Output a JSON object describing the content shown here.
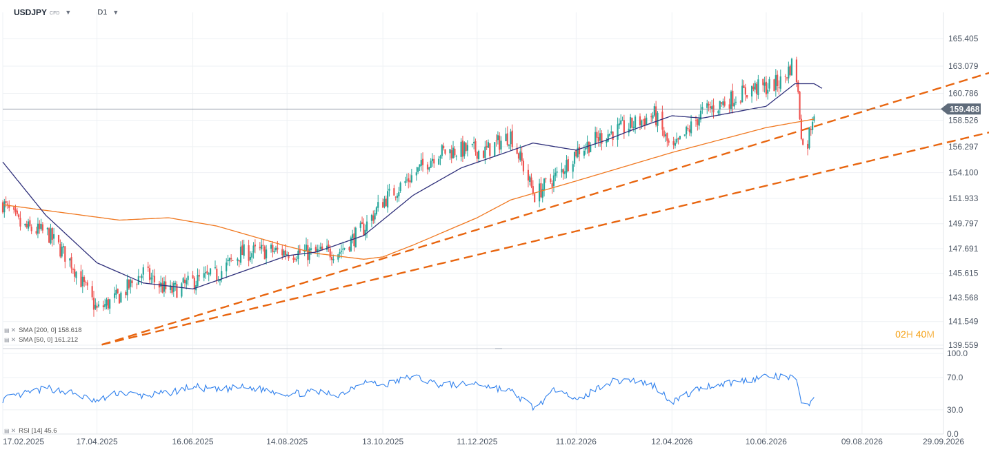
{
  "header": {
    "symbol": "USDJPY",
    "instrument_type": "CFD",
    "timeframe": "D1"
  },
  "indicators": {
    "sma200": {
      "label": "SMA [200, 0] 158.618",
      "color": "#f07820"
    },
    "sma50": {
      "label": "SMA [50, 0] 161.212",
      "color": "#2e2f7a"
    },
    "rsi": {
      "label": "RSI [14] 45.6",
      "color": "#2f80ed"
    }
  },
  "countdown": {
    "hours": "02",
    "h_unit": "H",
    "minutes": "40",
    "m_unit": "M"
  },
  "current_price": {
    "label": "159.468",
    "value": 159.468,
    "color": "#5f6b7a"
  },
  "colors": {
    "up": "#26a69a",
    "down": "#ef5350",
    "trendline": "#e8650f",
    "grid": "#eef1f4"
  },
  "chart_data": [
    {
      "type": "candlestick",
      "title": "USDJPY D1",
      "ylim": [
        139.0,
        166.0
      ],
      "y_ticks": [
        165.405,
        163.079,
        160.786,
        158.526,
        156.297,
        154.1,
        151.933,
        149.797,
        147.691,
        145.615,
        143.568,
        141.549,
        139.559
      ],
      "x_labels": [
        "17.02.2025",
        "17.04.2025",
        "16.06.2025",
        "14.08.2025",
        "13.10.2025",
        "11.12.2025",
        "11.02.2026",
        "12.04.2026",
        "10.06.2026",
        "09.08.2026",
        "29.09.2026"
      ],
      "close_anchors": {
        "x": [
          "17.02.2025",
          "01.03.2025",
          "17.03.2025",
          "01.04.2025",
          "17.04.2025",
          "01.05.2025",
          "16.05.2025",
          "01.06.2025",
          "16.06.2025",
          "01.07.2025",
          "16.07.2025",
          "01.08.2025",
          "14.08.2025",
          "01.09.2025",
          "16.09.2025",
          "01.10.2025",
          "13.10.2025",
          "01.11.2025",
          "16.11.2025",
          "01.12.2025",
          "11.12.2025",
          "15.12.2025",
          "01.01.2026",
          "16.01.2026",
          "01.02.2026",
          "11.02.2026",
          "01.03.2026",
          "16.03.2026",
          "01.04.2026",
          "12.04.2026",
          "01.05.2026",
          "16.05.2026",
          "01.06.2026",
          "10.06.2026",
          "20.06.2026",
          "28.06.2026",
          "01.07.2026",
          "04.07.2026",
          "07.07.2026",
          "10.07.2026"
        ],
        "y": [
          151.5,
          149.5,
          149.0,
          146.5,
          142.5,
          143.7,
          145.7,
          144.0,
          144.9,
          145.5,
          147.3,
          147.5,
          147.4,
          147.3,
          147.5,
          149.4,
          151.7,
          153.9,
          155.8,
          156.0,
          156.0,
          155.8,
          157.3,
          152.2,
          154.1,
          155.9,
          157.3,
          158.0,
          159.0,
          155.8,
          159.2,
          160.1,
          161.2,
          161.3,
          161.8,
          163.7,
          159.0,
          154.9,
          157.5,
          159.47
        ]
      },
      "series": [
        {
          "name": "SMA [200, 0]",
          "last": 158.618,
          "anchors": {
            "x": [
              "17.02.2025",
              "01.05.2025",
              "01.06.2025",
              "01.07.2025",
              "14.08.2025",
              "01.09.2025",
              "01.10.2025",
              "13.10.2025",
              "01.11.2025",
              "11.12.2025",
              "01.01.2026",
              "11.02.2026",
              "12.04.2026",
              "10.06.2026",
              "10.07.2026"
            ],
            "y": [
              151.4,
              150.1,
              150.3,
              149.6,
              147.9,
              147.3,
              146.8,
              147.0,
              148.0,
              150.3,
              151.8,
              153.4,
              155.8,
              157.9,
              158.618
            ]
          }
        },
        {
          "name": "SMA [50, 0]",
          "last": 161.212,
          "anchors": {
            "x": [
              "17.02.2025",
              "16.03.2025",
              "17.04.2025",
              "16.05.2025",
              "16.06.2025",
              "01.07.2025",
              "14.08.2025",
              "01.09.2025",
              "01.10.2025",
              "01.11.2025",
              "01.12.2025",
              "15.01.2026",
              "11.02.2026",
              "01.03.2026",
              "16.03.2026",
              "12.04.2026",
              "01.05.2026",
              "10.06.2026",
              "28.06.2026",
              "10.07.2026",
              "15.07.2026"
            ],
            "y": [
              155.0,
              150.5,
              146.5,
              144.8,
              144.3,
              145.0,
              147.1,
              147.4,
              148.8,
              152.2,
              154.5,
              156.6,
              156.0,
              156.8,
              157.6,
              158.9,
              158.7,
              159.7,
              161.6,
              161.6,
              161.212
            ]
          }
        }
      ],
      "trendlines": [
        {
          "x": [
            "20.04.2025",
            "06.11.2026"
          ],
          "y": [
            139.6,
            162.9
          ]
        },
        {
          "x": [
            "20.04.2025",
            "06.11.2026"
          ],
          "y": [
            139.6,
            157.8
          ]
        }
      ]
    },
    {
      "type": "line",
      "title": "RSI [14]",
      "ylim": [
        0,
        100
      ],
      "y_ticks": [
        100.0,
        70.0,
        30.0,
        0.0
      ],
      "series": [
        {
          "name": "RSI [14]",
          "last": 45.6,
          "anchors": {
            "x": [
              "17.02.2025",
              "01.03.2025",
              "17.03.2025",
              "01.04.2025",
              "17.04.2025",
              "01.05.2025",
              "16.05.2025",
              "01.06.2025",
              "16.06.2025",
              "01.07.2025",
              "16.07.2025",
              "01.08.2025",
              "14.08.2025",
              "01.09.2025",
              "16.09.2025",
              "01.10.2025",
              "13.10.2025",
              "01.11.2025",
              "16.11.2025",
              "01.12.2025",
              "11.12.2025",
              "01.01.2026",
              "16.01.2026",
              "01.02.2026",
              "11.02.2026",
              "01.03.2026",
              "16.03.2026",
              "01.04.2026",
              "12.04.2026",
              "01.05.2026",
              "16.05.2026",
              "01.06.2026",
              "10.06.2026",
              "20.06.2026",
              "28.06.2026",
              "04.07.2026",
              "07.07.2026",
              "10.07.2026"
            ],
            "y": [
              43,
              49,
              57,
              51,
              40,
              52,
              47,
              51,
              59,
              54,
              58,
              55,
              50,
              52,
              49,
              66,
              60,
              72,
              62,
              61,
              63,
              53,
              32,
              60,
              40,
              63,
              68,
              60,
              40,
              58,
              63,
              68,
              72,
              70,
              70,
              29,
              38,
              45.6
            ]
          }
        }
      ]
    }
  ]
}
